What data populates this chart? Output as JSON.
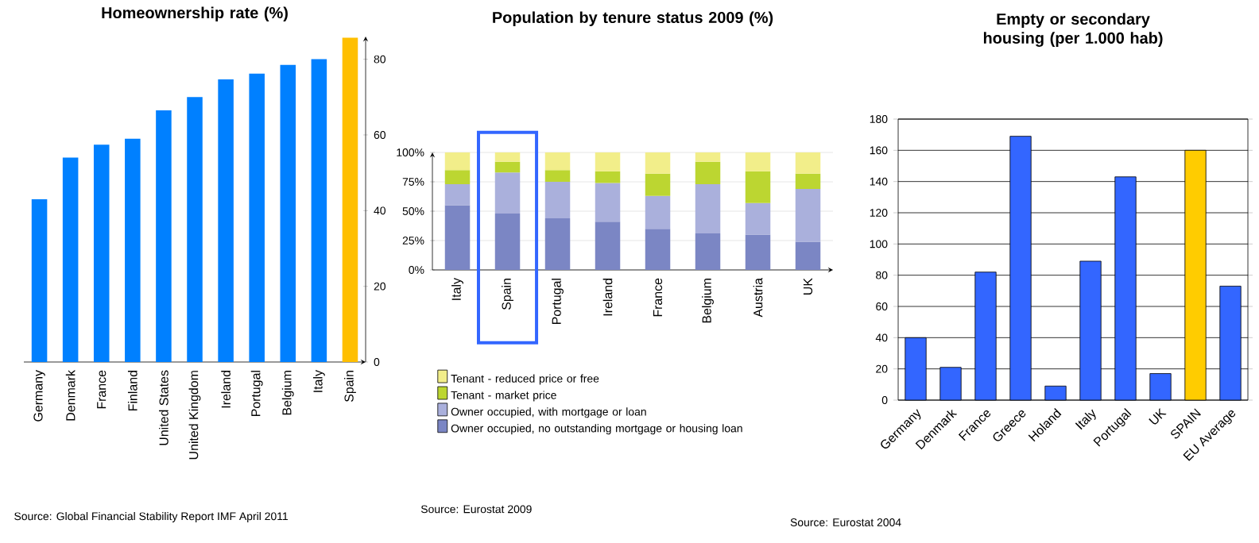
{
  "chart_data": [
    {
      "type": "bar",
      "title": "Homeownership rate (%)",
      "categories": [
        "Germany",
        "Denmark",
        "France",
        "Finland",
        "United States",
        "United Kingdom",
        "Ireland",
        "Portugal",
        "Belgium",
        "Italy",
        "Spain"
      ],
      "values": [
        43,
        54,
        57.4,
        59,
        66.5,
        70,
        74.7,
        76.2,
        78.5,
        80,
        85.7
      ],
      "colors": [
        "#0080ff",
        "#0080ff",
        "#0080ff",
        "#0080ff",
        "#0080ff",
        "#0080ff",
        "#0080ff",
        "#0080ff",
        "#0080ff",
        "#0080ff",
        "#ffbf00"
      ],
      "ylim": [
        0,
        86
      ],
      "yticks": [
        0,
        20,
        40,
        60,
        80
      ],
      "annotations": [
        "Source: Global Financial Stability Report IMF April 2011"
      ]
    },
    {
      "type": "bar",
      "title": "Population by tenure status 2009 (%)",
      "stacked": true,
      "categories": [
        "Italy",
        "Spain",
        "Portugal",
        "Ireland",
        "France",
        "Belgium",
        "Austria",
        "UK"
      ],
      "series": [
        {
          "name": "Owner occupied, no outstanding mortgage or housing loan",
          "color": "#7b86c4",
          "values": [
            55,
            48,
            44,
            41,
            35,
            31,
            30,
            24
          ]
        },
        {
          "name": "Owner occupied, with mortgage or loan",
          "color": "#aab0dc",
          "values": [
            18,
            35,
            31,
            33,
            28,
            42,
            27,
            45
          ]
        },
        {
          "name": "Tenant - market price",
          "color": "#bcd631",
          "values": [
            12,
            9,
            10,
            10,
            19,
            19,
            27,
            13
          ]
        },
        {
          "name": "Tenant - reduced price or free",
          "color": "#f2ee8a",
          "values": [
            15,
            8,
            15,
            16,
            18,
            8,
            16,
            18
          ]
        }
      ],
      "ylim": [
        0,
        100
      ],
      "yticks": [
        {
          "value": 0,
          "label": "0%"
        },
        {
          "value": 25,
          "label": "25%"
        },
        {
          "value": 50,
          "label": "50%"
        },
        {
          "value": 75,
          "label": "75%"
        },
        {
          "value": 100,
          "label": "100%"
        }
      ],
      "grid": "y",
      "legend": "bottom",
      "annotations": [
        "Source: Eurostat 2009"
      ]
    },
    {
      "type": "bar",
      "title": "Empty or secondary housing (per 1.000 hab)",
      "categories": [
        "Germany",
        "Denmark",
        "France",
        "Greece",
        "Holand",
        "Italy",
        "Portugal",
        "UK",
        "SPAIN",
        "EU Average"
      ],
      "values": [
        40,
        21,
        82,
        169,
        9,
        89,
        143,
        17,
        160,
        73
      ],
      "colors": [
        "#3366ff",
        "#3366ff",
        "#3366ff",
        "#3366ff",
        "#3366ff",
        "#3366ff",
        "#3366ff",
        "#3366ff",
        "#ffcc00",
        "#3366ff"
      ],
      "ylim": [
        0,
        180
      ],
      "yticks": [
        0,
        20,
        40,
        60,
        80,
        100,
        120,
        140,
        160,
        180
      ],
      "grid": "y",
      "annotations": [
        "Source: Eurostat 2004"
      ]
    }
  ]
}
